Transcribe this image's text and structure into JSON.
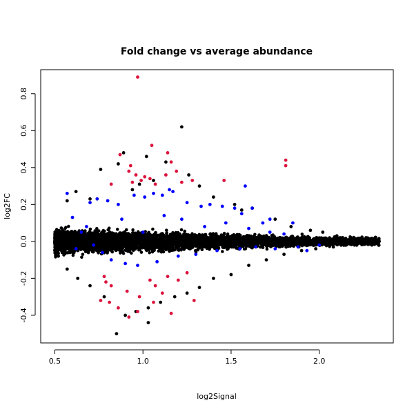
{
  "chart_data": {
    "type": "scatter",
    "title": "Fold change vs average abundance",
    "xlabel": "log2Signal",
    "ylabel": "log2FC",
    "xlim": [
      0.42,
      2.42
    ],
    "ylim": [
      -0.55,
      0.93
    ],
    "xticks": [
      "0.5",
      "1.0",
      "1.5",
      "2.0"
    ],
    "yticks": [
      "-0.4",
      "-0.2",
      "0.0",
      "0.2",
      "0.4",
      "0.6",
      "0.8"
    ],
    "grid": false,
    "legend": "none",
    "colors": {
      "background": "#000000",
      "blue": "#0000ff",
      "red": "#dc143c"
    },
    "series": [
      {
        "color": "#000000",
        "points": [
          [
            1.22,
            0.62
          ],
          [
            0.89,
            0.48
          ],
          [
            1.02,
            0.46
          ],
          [
            1.13,
            0.43
          ],
          [
            0.86,
            0.42
          ],
          [
            0.76,
            0.39
          ],
          [
            1.26,
            0.36
          ],
          [
            1.06,
            0.33
          ],
          [
            0.98,
            0.31
          ],
          [
            1.32,
            0.3
          ],
          [
            0.94,
            0.28
          ],
          [
            1.4,
            0.24
          ],
          [
            1.52,
            0.2
          ],
          [
            1.62,
            0.18
          ],
          [
            1.56,
            0.17
          ],
          [
            0.62,
            0.27
          ],
          [
            0.57,
            0.22
          ],
          [
            0.7,
            0.23
          ],
          [
            1.75,
            0.12
          ],
          [
            1.84,
            0.08
          ],
          [
            1.95,
            0.06
          ],
          [
            2.02,
            0.05
          ],
          [
            2.1,
            0.03
          ],
          [
            2.18,
            0.02
          ],
          [
            2.26,
            0.0
          ],
          [
            2.34,
            0.0
          ],
          [
            2.28,
            -0.01
          ],
          [
            2.2,
            -0.02
          ],
          [
            2.08,
            -0.03
          ],
          [
            1.98,
            -0.04
          ],
          [
            1.9,
            -0.05
          ],
          [
            1.8,
            -0.07
          ],
          [
            1.7,
            -0.1
          ],
          [
            1.6,
            -0.13
          ],
          [
            1.5,
            -0.18
          ],
          [
            1.4,
            -0.2
          ],
          [
            1.32,
            -0.25
          ],
          [
            1.25,
            -0.28
          ],
          [
            1.18,
            -0.3
          ],
          [
            1.1,
            -0.33
          ],
          [
            1.03,
            -0.36
          ],
          [
            0.96,
            -0.38
          ],
          [
            0.9,
            -0.4
          ],
          [
            0.85,
            -0.5
          ],
          [
            1.03,
            -0.44
          ],
          [
            0.78,
            -0.3
          ],
          [
            0.7,
            -0.24
          ],
          [
            0.63,
            -0.2
          ],
          [
            0.57,
            -0.15
          ],
          [
            0.52,
            -0.08
          ]
        ]
      },
      {
        "color": "#0000ff",
        "points": [
          [
            0.57,
            0.26
          ],
          [
            0.7,
            0.21
          ],
          [
            0.74,
            0.23
          ],
          [
            0.8,
            0.22
          ],
          [
            0.86,
            0.2
          ],
          [
            0.95,
            0.25
          ],
          [
            1.01,
            0.24
          ],
          [
            1.06,
            0.26
          ],
          [
            1.11,
            0.25
          ],
          [
            1.15,
            0.28
          ],
          [
            1.17,
            0.27
          ],
          [
            1.25,
            0.21
          ],
          [
            1.33,
            0.19
          ],
          [
            1.38,
            0.2
          ],
          [
            1.45,
            0.19
          ],
          [
            1.52,
            0.18
          ],
          [
            1.58,
            0.3
          ],
          [
            1.62,
            0.18
          ],
          [
            1.56,
            0.15
          ],
          [
            1.68,
            0.1
          ],
          [
            1.72,
            0.12
          ],
          [
            1.85,
            0.1
          ],
          [
            0.6,
            0.13
          ],
          [
            0.65,
            0.05
          ],
          [
            0.72,
            -0.02
          ],
          [
            0.77,
            -0.06
          ],
          [
            0.82,
            -0.1
          ],
          [
            0.9,
            -0.12
          ],
          [
            0.97,
            -0.13
          ],
          [
            1.08,
            -0.11
          ],
          [
            1.2,
            -0.08
          ],
          [
            1.3,
            -0.07
          ],
          [
            1.42,
            -0.05
          ],
          [
            1.55,
            -0.04
          ],
          [
            1.64,
            -0.03
          ],
          [
            1.75,
            -0.04
          ],
          [
            1.88,
            -0.03
          ],
          [
            1.93,
            -0.05
          ],
          [
            2.0,
            -0.02
          ],
          [
            0.62,
            -0.04
          ],
          [
            0.68,
            0.08
          ],
          [
            0.88,
            0.12
          ],
          [
            1.0,
            0.05
          ],
          [
            1.12,
            0.14
          ],
          [
            1.22,
            0.12
          ],
          [
            1.35,
            0.08
          ],
          [
            1.47,
            0.1
          ],
          [
            1.6,
            0.07
          ],
          [
            1.72,
            0.05
          ],
          [
            1.8,
            0.04
          ]
        ]
      },
      {
        "color": "#dc143c",
        "points": [
          [
            0.97,
            0.89
          ],
          [
            1.05,
            0.52
          ],
          [
            1.81,
            0.44
          ],
          [
            1.81,
            0.41
          ],
          [
            1.14,
            0.48
          ],
          [
            0.87,
            0.47
          ],
          [
            0.93,
            0.41
          ],
          [
            0.92,
            0.38
          ],
          [
            0.96,
            0.36
          ],
          [
            1.01,
            0.35
          ],
          [
            1.04,
            0.34
          ],
          [
            1.07,
            0.31
          ],
          [
            0.94,
            0.32
          ],
          [
            0.99,
            0.33
          ],
          [
            1.13,
            0.36
          ],
          [
            1.19,
            0.38
          ],
          [
            1.16,
            0.43
          ],
          [
            1.22,
            0.32
          ],
          [
            1.28,
            0.33
          ],
          [
            1.46,
            0.33
          ],
          [
            0.82,
            0.31
          ],
          [
            0.78,
            -0.19
          ],
          [
            0.79,
            -0.22
          ],
          [
            0.82,
            -0.24
          ],
          [
            0.76,
            -0.32
          ],
          [
            0.81,
            -0.33
          ],
          [
            0.86,
            -0.36
          ],
          [
            0.92,
            -0.41
          ],
          [
            0.97,
            -0.38
          ],
          [
            1.16,
            -0.39
          ],
          [
            1.06,
            -0.33
          ],
          [
            0.98,
            -0.3
          ],
          [
            0.91,
            -0.27
          ],
          [
            1.29,
            -0.32
          ],
          [
            1.11,
            -0.28
          ],
          [
            1.07,
            -0.24
          ],
          [
            1.04,
            -0.21
          ],
          [
            1.14,
            -0.19
          ],
          [
            1.2,
            -0.21
          ],
          [
            1.25,
            -0.17
          ]
        ]
      }
    ]
  }
}
